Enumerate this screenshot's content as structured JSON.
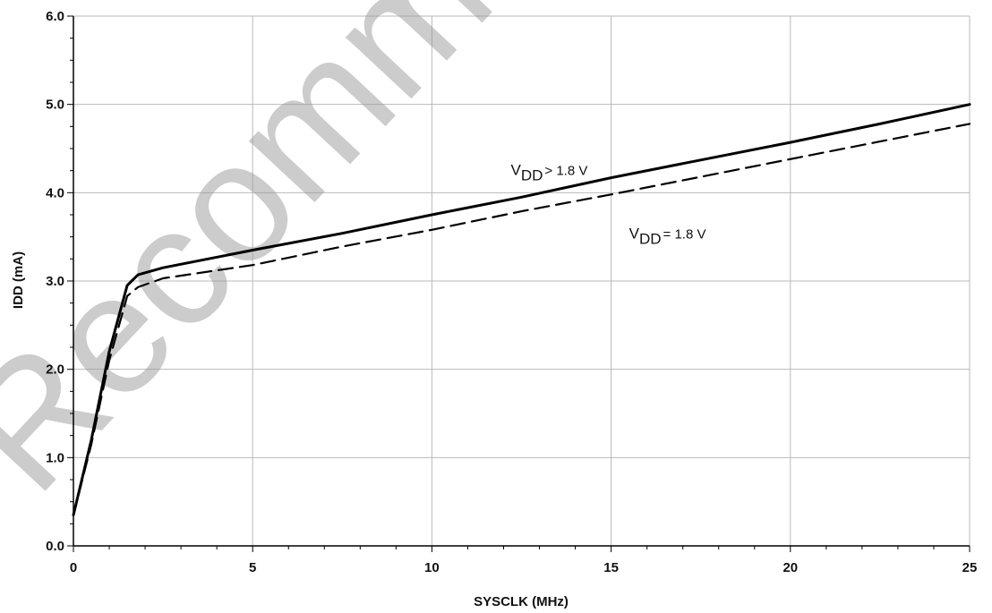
{
  "chart_data": {
    "type": "line",
    "xlabel": "SYSCLK (MHz)",
    "ylabel": "IDD (mA)",
    "xlim": [
      0,
      25
    ],
    "ylim": [
      0,
      6
    ],
    "xticks": [
      0,
      5,
      10,
      15,
      20,
      25
    ],
    "xtick_labels": [
      "0",
      "5",
      "10",
      "15",
      "20",
      "25"
    ],
    "yticks": [
      0,
      1,
      2,
      3,
      4,
      5,
      6
    ],
    "ytick_labels": [
      "0.0",
      "1.0",
      "2.0",
      "3.0",
      "4.0",
      "5.0",
      "6.0"
    ],
    "grid": true,
    "series": [
      {
        "style": "solid",
        "color": "#000000",
        "x": [
          0,
          0.5,
          1.0,
          1.5,
          1.8,
          2.5,
          5,
          7.5,
          10,
          12.5,
          15,
          17.5,
          20,
          22.5,
          25
        ],
        "y": [
          0.35,
          1.2,
          2.2,
          2.95,
          3.07,
          3.15,
          3.35,
          3.54,
          3.75,
          3.95,
          4.17,
          4.37,
          4.57,
          4.78,
          5.0
        ]
      },
      {
        "style": "dashed",
        "color": "#000000",
        "x": [
          0,
          0.5,
          1.0,
          1.5,
          1.8,
          2.5,
          5,
          7.5,
          10,
          12.5,
          15,
          17.5,
          20,
          22.5,
          25
        ],
        "y": [
          0.35,
          1.15,
          2.1,
          2.83,
          2.93,
          3.03,
          3.18,
          3.39,
          3.58,
          3.79,
          3.98,
          4.18,
          4.38,
          4.58,
          4.78
        ]
      }
    ],
    "annotations": [
      {
        "main": "V",
        "sub": "DD",
        "rest": "> 1.8 V",
        "x": 12.2,
        "y": 4.2
      },
      {
        "main": "V",
        "sub": "DD",
        "rest": "= 1.8 V",
        "x": 15.5,
        "y": 3.48
      }
    ]
  },
  "watermark": "Recommend",
  "colors": {
    "grid": "#b9b9b9",
    "axis": "#000000",
    "watermark": "#9a9a9a"
  }
}
